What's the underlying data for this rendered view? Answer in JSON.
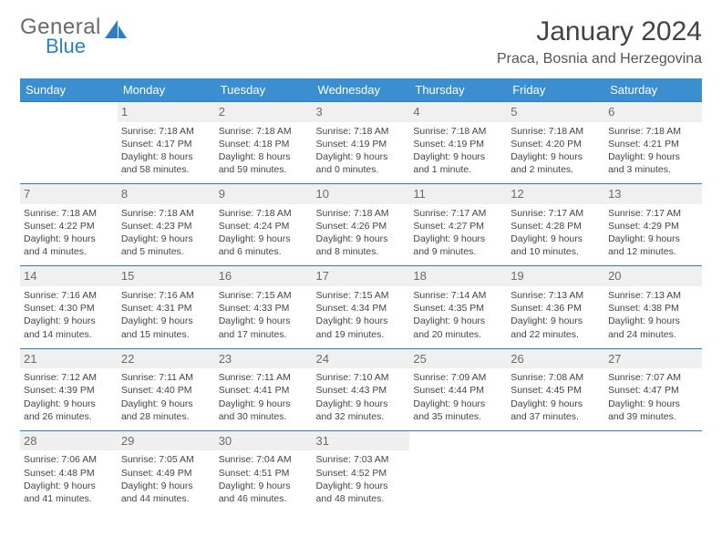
{
  "brand": {
    "word1": "General",
    "word2": "Blue"
  },
  "title": "January 2024",
  "location": "Praca, Bosnia and Herzegovina",
  "colors": {
    "header_bg": "#3b8fd0",
    "header_text": "#ffffff",
    "sep_line": "#2d7fc5",
    "daynum_bg": "#f0f0f0",
    "text": "#444444",
    "logo_gray": "#6a6a6a",
    "logo_blue": "#2d7fc5"
  },
  "day_headers": [
    "Sunday",
    "Monday",
    "Tuesday",
    "Wednesday",
    "Thursday",
    "Friday",
    "Saturday"
  ],
  "weeks": [
    [
      null,
      {
        "n": "1",
        "sr": "7:18 AM",
        "ss": "4:17 PM",
        "dl": "Daylight: 8 hours and 58 minutes."
      },
      {
        "n": "2",
        "sr": "7:18 AM",
        "ss": "4:18 PM",
        "dl": "Daylight: 8 hours and 59 minutes."
      },
      {
        "n": "3",
        "sr": "7:18 AM",
        "ss": "4:19 PM",
        "dl": "Daylight: 9 hours and 0 minutes."
      },
      {
        "n": "4",
        "sr": "7:18 AM",
        "ss": "4:19 PM",
        "dl": "Daylight: 9 hours and 1 minute."
      },
      {
        "n": "5",
        "sr": "7:18 AM",
        "ss": "4:20 PM",
        "dl": "Daylight: 9 hours and 2 minutes."
      },
      {
        "n": "6",
        "sr": "7:18 AM",
        "ss": "4:21 PM",
        "dl": "Daylight: 9 hours and 3 minutes."
      }
    ],
    [
      {
        "n": "7",
        "sr": "7:18 AM",
        "ss": "4:22 PM",
        "dl": "Daylight: 9 hours and 4 minutes."
      },
      {
        "n": "8",
        "sr": "7:18 AM",
        "ss": "4:23 PM",
        "dl": "Daylight: 9 hours and 5 minutes."
      },
      {
        "n": "9",
        "sr": "7:18 AM",
        "ss": "4:24 PM",
        "dl": "Daylight: 9 hours and 6 minutes."
      },
      {
        "n": "10",
        "sr": "7:18 AM",
        "ss": "4:26 PM",
        "dl": "Daylight: 9 hours and 8 minutes."
      },
      {
        "n": "11",
        "sr": "7:17 AM",
        "ss": "4:27 PM",
        "dl": "Daylight: 9 hours and 9 minutes."
      },
      {
        "n": "12",
        "sr": "7:17 AM",
        "ss": "4:28 PM",
        "dl": "Daylight: 9 hours and 10 minutes."
      },
      {
        "n": "13",
        "sr": "7:17 AM",
        "ss": "4:29 PM",
        "dl": "Daylight: 9 hours and 12 minutes."
      }
    ],
    [
      {
        "n": "14",
        "sr": "7:16 AM",
        "ss": "4:30 PM",
        "dl": "Daylight: 9 hours and 14 minutes."
      },
      {
        "n": "15",
        "sr": "7:16 AM",
        "ss": "4:31 PM",
        "dl": "Daylight: 9 hours and 15 minutes."
      },
      {
        "n": "16",
        "sr": "7:15 AM",
        "ss": "4:33 PM",
        "dl": "Daylight: 9 hours and 17 minutes."
      },
      {
        "n": "17",
        "sr": "7:15 AM",
        "ss": "4:34 PM",
        "dl": "Daylight: 9 hours and 19 minutes."
      },
      {
        "n": "18",
        "sr": "7:14 AM",
        "ss": "4:35 PM",
        "dl": "Daylight: 9 hours and 20 minutes."
      },
      {
        "n": "19",
        "sr": "7:13 AM",
        "ss": "4:36 PM",
        "dl": "Daylight: 9 hours and 22 minutes."
      },
      {
        "n": "20",
        "sr": "7:13 AM",
        "ss": "4:38 PM",
        "dl": "Daylight: 9 hours and 24 minutes."
      }
    ],
    [
      {
        "n": "21",
        "sr": "7:12 AM",
        "ss": "4:39 PM",
        "dl": "Daylight: 9 hours and 26 minutes."
      },
      {
        "n": "22",
        "sr": "7:11 AM",
        "ss": "4:40 PM",
        "dl": "Daylight: 9 hours and 28 minutes."
      },
      {
        "n": "23",
        "sr": "7:11 AM",
        "ss": "4:41 PM",
        "dl": "Daylight: 9 hours and 30 minutes."
      },
      {
        "n": "24",
        "sr": "7:10 AM",
        "ss": "4:43 PM",
        "dl": "Daylight: 9 hours and 32 minutes."
      },
      {
        "n": "25",
        "sr": "7:09 AM",
        "ss": "4:44 PM",
        "dl": "Daylight: 9 hours and 35 minutes."
      },
      {
        "n": "26",
        "sr": "7:08 AM",
        "ss": "4:45 PM",
        "dl": "Daylight: 9 hours and 37 minutes."
      },
      {
        "n": "27",
        "sr": "7:07 AM",
        "ss": "4:47 PM",
        "dl": "Daylight: 9 hours and 39 minutes."
      }
    ],
    [
      {
        "n": "28",
        "sr": "7:06 AM",
        "ss": "4:48 PM",
        "dl": "Daylight: 9 hours and 41 minutes."
      },
      {
        "n": "29",
        "sr": "7:05 AM",
        "ss": "4:49 PM",
        "dl": "Daylight: 9 hours and 44 minutes."
      },
      {
        "n": "30",
        "sr": "7:04 AM",
        "ss": "4:51 PM",
        "dl": "Daylight: 9 hours and 46 minutes."
      },
      {
        "n": "31",
        "sr": "7:03 AM",
        "ss": "4:52 PM",
        "dl": "Daylight: 9 hours and 48 minutes."
      },
      null,
      null,
      null
    ]
  ]
}
